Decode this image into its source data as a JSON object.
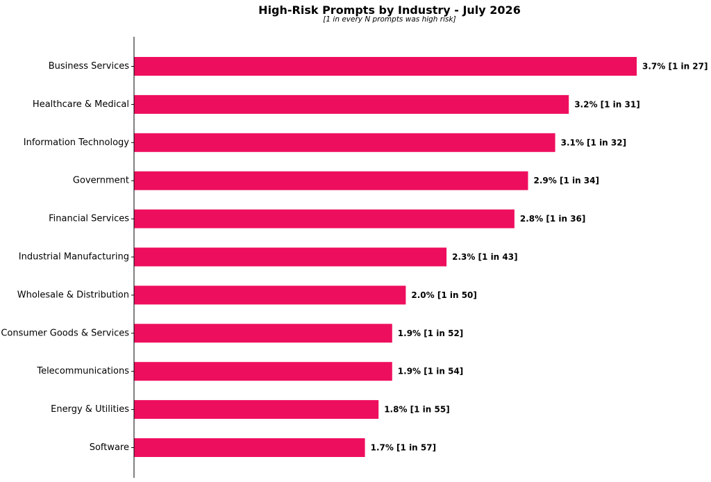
{
  "chart_data": {
    "type": "bar",
    "orientation": "horizontal",
    "title": "High-Risk Prompts by Industry - July 2026",
    "subtitle": "[1 in every N prompts was high risk]",
    "xlabel": "",
    "ylabel": "",
    "xlim": [
      0,
      3.7
    ],
    "grid": false,
    "bar_color": "#EE0E5E",
    "categories": [
      "Business Services",
      "Healthcare & Medical",
      "Information Technology",
      "Government",
      "Financial Services",
      "Industrial Manufacturing",
      "Wholesale & Distribution",
      "Consumer Goods & Services",
      "Telecommunications",
      "Energy & Utilities",
      "Software"
    ],
    "values": [
      3.7,
      3.2,
      3.1,
      2.9,
      2.8,
      2.3,
      2.0,
      1.9,
      1.9,
      1.8,
      1.7
    ],
    "one_in_n": [
      27,
      31,
      32,
      34,
      36,
      43,
      50,
      52,
      54,
      55,
      57
    ],
    "data_labels": [
      "3.7% [1 in 27]",
      "3.2% [1 in 31]",
      "3.1% [1 in 32]",
      "2.9% [1 in 34]",
      "2.8% [1 in 36]",
      "2.3% [1 in 43]",
      "2.0% [1 in 50]",
      "1.9% [1 in 52]",
      "1.9% [1 in 54]",
      "1.8% [1 in 55]",
      "1.7% [1 in 57]"
    ]
  }
}
